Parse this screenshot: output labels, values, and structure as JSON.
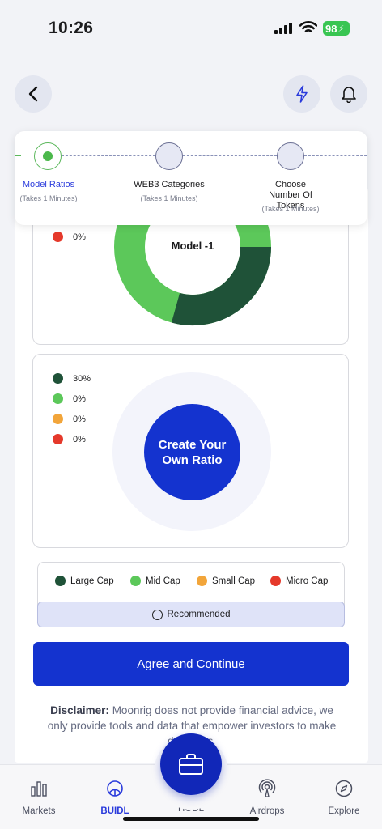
{
  "status_bar": {
    "time": "10:26",
    "battery": "98"
  },
  "stepper": {
    "steps": [
      {
        "label": "Model Ratios",
        "sub": "(Takes 1 Minutes)"
      },
      {
        "label": "WEB3 Categories",
        "sub": "(Takes 1 Minutes)"
      },
      {
        "label": "Choose Number Of Tokens",
        "sub": "(Takes 1 Minutes)"
      }
    ]
  },
  "model_panel": {
    "title": "Model -1",
    "legend_top_value": "0%"
  },
  "custom_panel": {
    "button_label": "Create Your Own Ratio",
    "legend": [
      {
        "value": "30%",
        "color": "#1f5238"
      },
      {
        "value": "0%",
        "color": "#5cc85a"
      },
      {
        "value": "0%",
        "color": "#f2a53a"
      },
      {
        "value": "0%",
        "color": "#e5392b"
      }
    ]
  },
  "caps": {
    "items": [
      {
        "label": "Large Cap",
        "color": "#1f5238"
      },
      {
        "label": "Mid Cap",
        "color": "#5cc85a"
      },
      {
        "label": "Small Cap",
        "color": "#f2a53a"
      },
      {
        "label": "Micro Cap",
        "color": "#e5392b"
      }
    ],
    "recommended_label": "Recommended"
  },
  "agree_button": "Agree and Continue",
  "disclaimer": {
    "label": "Disclaimer:",
    "text": " Moonrig does not provide financial advice, we only provide tools and data that empower investors to make decisions."
  },
  "bottom_nav": {
    "items": [
      {
        "label": "Markets"
      },
      {
        "label": "BUIDL"
      },
      {
        "label": "HODL"
      },
      {
        "label": "Airdrops"
      },
      {
        "label": "Explore"
      }
    ]
  }
}
